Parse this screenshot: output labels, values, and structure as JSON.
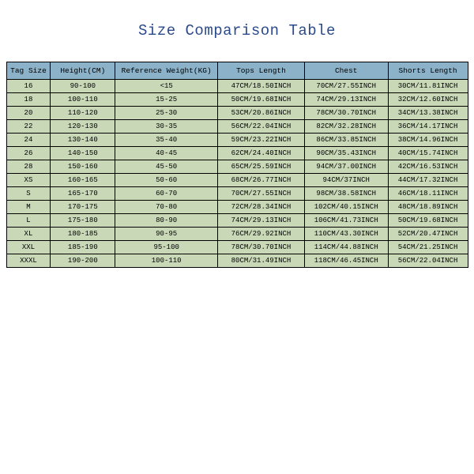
{
  "title": "Size Comparison Table",
  "table": {
    "header_bg": "#8bb2c9",
    "row_bg": "#c9d9b8",
    "border_color": "#000000",
    "title_color": "#2a4a8a",
    "columns": [
      "Tag Size",
      "Height(CM)",
      "Reference Weight(KG)",
      "Tops Length",
      "Chest",
      "Shorts Length"
    ],
    "rows": [
      [
        "16",
        "90-100",
        "<15",
        "47CM/18.50INCH",
        "70CM/27.55INCH",
        "30CM/11.81INCH"
      ],
      [
        "18",
        "100-110",
        "15-25",
        "50CM/19.68INCH",
        "74CM/29.13INCH",
        "32CM/12.60INCH"
      ],
      [
        "20",
        "110-120",
        "25-30",
        "53CM/20.86INCH",
        "78CM/30.70INCH",
        "34CM/13.38INCH"
      ],
      [
        "22",
        "120-130",
        "30-35",
        "56CM/22.04INCH",
        "82CM/32.28INCH",
        "36CM/14.17INCH"
      ],
      [
        "24",
        "130-140",
        "35-40",
        "59CM/23.22INCH",
        "86CM/33.85INCH",
        "38CM/14.96INCH"
      ],
      [
        "26",
        "140-150",
        "40-45",
        "62CM/24.40INCH",
        "90CM/35.43INCH",
        "40CM/15.74INCH"
      ],
      [
        "28",
        "150-160",
        "45-50",
        "65CM/25.59INCH",
        "94CM/37.00INCH",
        "42CM/16.53INCH"
      ],
      [
        "XS",
        "160-165",
        "50-60",
        "68CM/26.77INCH",
        "94CM/37INCH",
        "44CM/17.32INCH"
      ],
      [
        "S",
        "165-170",
        "60-70",
        "70CM/27.55INCH",
        "98CM/38.58INCH",
        "46CM/18.11INCH"
      ],
      [
        "M",
        "170-175",
        "70-80",
        "72CM/28.34INCH",
        "102CM/40.15INCH",
        "48CM/18.89INCH"
      ],
      [
        "L",
        "175-180",
        "80-90",
        "74CM/29.13INCH",
        "106CM/41.73INCH",
        "50CM/19.68INCH"
      ],
      [
        "XL",
        "180-185",
        "90-95",
        "76CM/29.92INCH",
        "110CM/43.30INCH",
        "52CM/20.47INCH"
      ],
      [
        "XXL",
        "185-190",
        "95-100",
        "78CM/30.70INCH",
        "114CM/44.88INCH",
        "54CM/21.25INCH"
      ],
      [
        "XXXL",
        "190-200",
        "100-110",
        "80CM/31.49INCH",
        "118CM/46.45INCH",
        "56CM/22.04INCH"
      ]
    ]
  }
}
